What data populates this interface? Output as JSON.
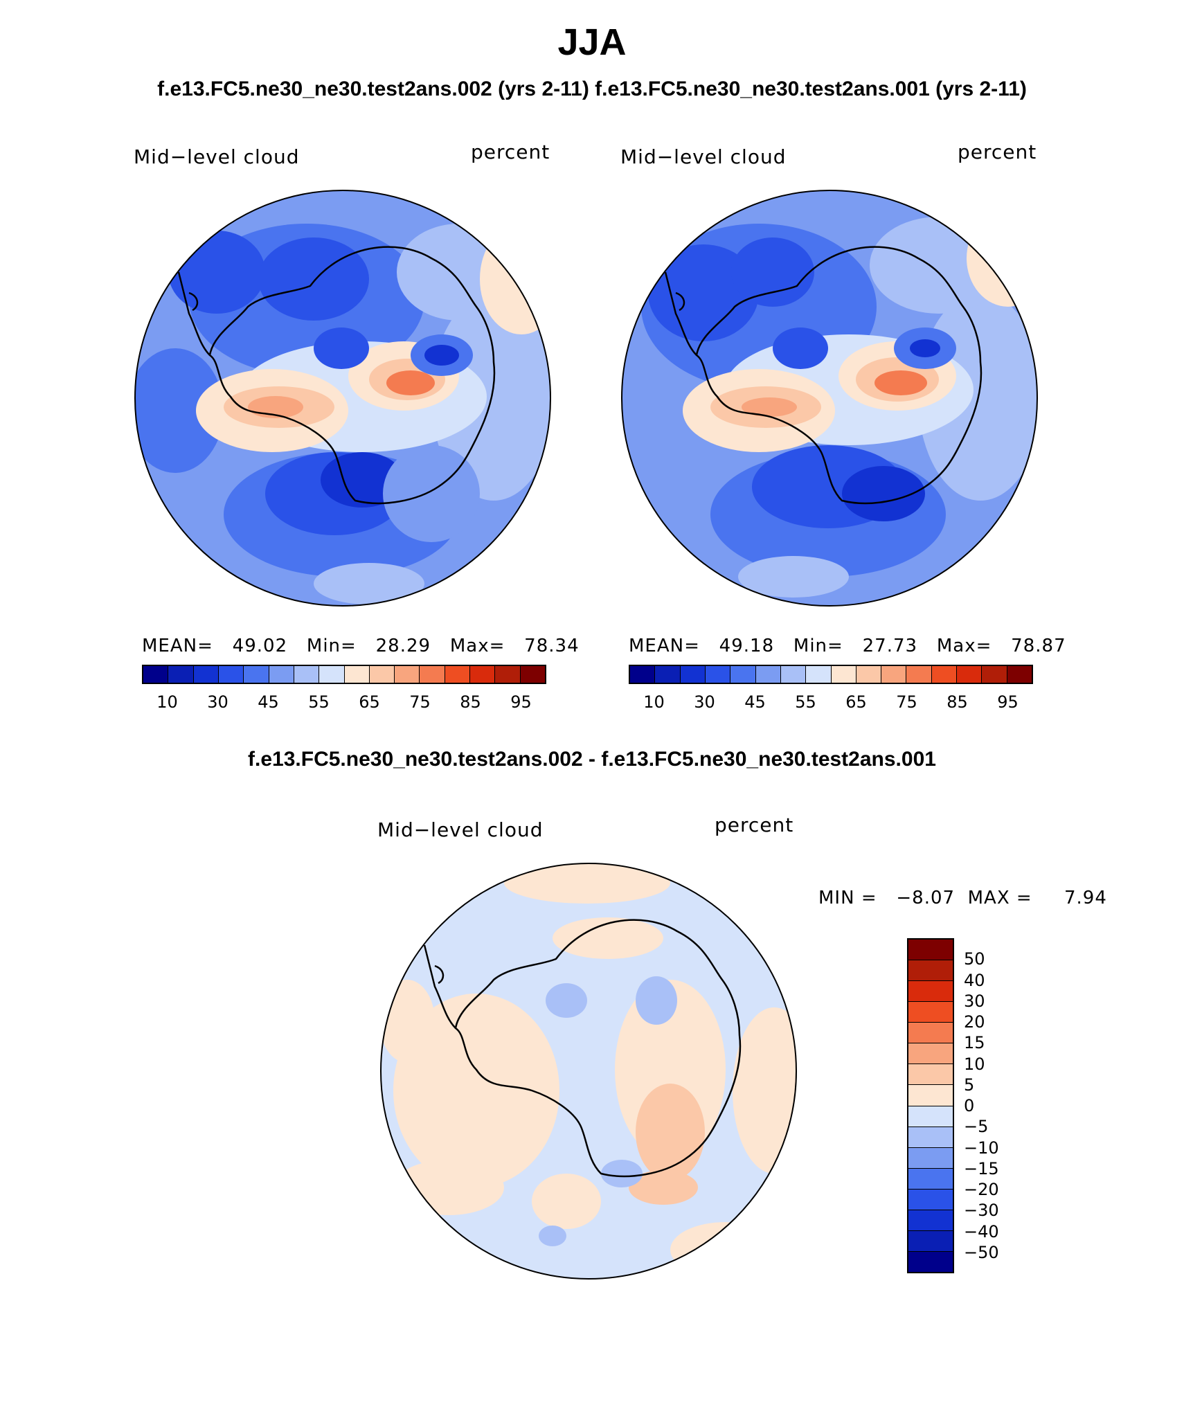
{
  "title": "JJA",
  "subtitle": "f.e13.FC5.ne30_ne30.test2ans.002 (yrs 2-11) f.e13.FC5.ne30_ne30.test2ans.001 (yrs 2-11)",
  "panels": [
    {
      "case": "f.e13.FC5.ne30_ne30.test2ans.002 (yrs 2-11)",
      "variable_label": "Mid−level cloud",
      "units_label": "percent",
      "stats_text": "MEAN=   49.02   Min=   28.29   Max=   78.34",
      "stats": {
        "mean": 49.02,
        "min": 28.29,
        "max": 78.34
      }
    },
    {
      "case": "f.e13.FC5.ne30_ne30.test2ans.001 (yrs 2-11)",
      "variable_label": "Mid−level cloud",
      "units_label": "percent",
      "stats_text": "MEAN=   49.18   Min=   27.73   Max=   78.87",
      "stats": {
        "mean": 49.18,
        "min": 27.73,
        "max": 78.87
      }
    }
  ],
  "abs_colorbar": {
    "colors": [
      "#00008b",
      "#0a1fb4",
      "#1232d2",
      "#2a52e8",
      "#4a74ef",
      "#7b9cf2",
      "#a9c0f7",
      "#d5e3fb",
      "#fde6d2",
      "#fbc8a8",
      "#f8a57e",
      "#f47b50",
      "#ee4e22",
      "#d92b0c",
      "#b01e08",
      "#7d0000"
    ],
    "tick_labels": [
      "10",
      "30",
      "45",
      "55",
      "65",
      "75",
      "85",
      "95"
    ]
  },
  "diff": {
    "title": "f.e13.FC5.ne30_ne30.test2ans.002 - f.e13.FC5.ne30_ne30.test2ans.001",
    "variable_label": "Mid−level cloud",
    "units_label": "percent",
    "minmax_text": "MIN =   −8.07  MAX =     7.94",
    "stats": {
      "min": -8.07,
      "max": 7.94
    },
    "colorbar": {
      "colors_top_to_bottom": [
        "#7d0000",
        "#b01e08",
        "#d92b0c",
        "#ee4e22",
        "#f47b50",
        "#f8a57e",
        "#fbc8a8",
        "#fde6d2",
        "#d5e3fb",
        "#a9c0f7",
        "#7b9cf2",
        "#4a74ef",
        "#2a52e8",
        "#1232d2",
        "#0a1fb4",
        "#00008b"
      ],
      "tick_labels": [
        "50",
        "40",
        "30",
        "20",
        "15",
        "10",
        "5",
        "0",
        "−5",
        "−10",
        "−15",
        "−20",
        "−30",
        "−40",
        "−50"
      ]
    }
  },
  "chart_data": [
    {
      "type": "heatmap",
      "projection": "south-polar-stereographic",
      "title": "Mid−level cloud",
      "units": "percent",
      "case": "f.e13.FC5.ne30_ne30.test2ans.002 (yrs 2-11)",
      "contour_levels": [
        10,
        15,
        20,
        25,
        30,
        35,
        40,
        45,
        50,
        55,
        60,
        65,
        70,
        75,
        80,
        85,
        90,
        95
      ],
      "mean": 49.02,
      "min": 28.29,
      "max": 78.34
    },
    {
      "type": "heatmap",
      "projection": "south-polar-stereographic",
      "title": "Mid−level cloud",
      "units": "percent",
      "case": "f.e13.FC5.ne30_ne30.test2ans.001 (yrs 2-11)",
      "contour_levels": [
        10,
        15,
        20,
        25,
        30,
        35,
        40,
        45,
        50,
        55,
        60,
        65,
        70,
        75,
        80,
        85,
        90,
        95
      ],
      "mean": 49.18,
      "min": 27.73,
      "max": 78.87
    },
    {
      "type": "heatmap",
      "projection": "south-polar-stereographic",
      "title": "Mid−level cloud",
      "units": "percent",
      "case": "f.e13.FC5.ne30_ne30.test2ans.002 - f.e13.FC5.ne30_ne30.test2ans.001",
      "contour_levels": [
        -50,
        -40,
        -30,
        -20,
        -15,
        -10,
        -5,
        0,
        5,
        10,
        15,
        20,
        30,
        40,
        50
      ],
      "min": -8.07,
      "max": 7.94
    }
  ]
}
